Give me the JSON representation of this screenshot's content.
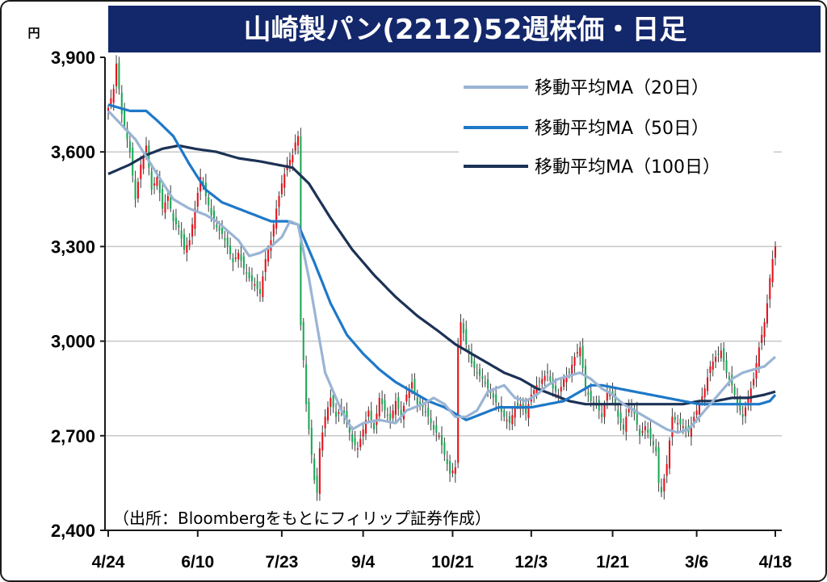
{
  "chart_data": {
    "type": "candlestick",
    "title": "山崎製パン(2212)52週株価・日足",
    "unit_label": "円",
    "source": "（出所：Bloombergをもとにフィリップ証券作成）",
    "y_ticks": [
      "3,900",
      "3,600",
      "3,300",
      "3,000",
      "2,700",
      "2,400"
    ],
    "y_tick_values": [
      3900,
      3600,
      3300,
      3000,
      2700,
      2400
    ],
    "ylim": [
      2400,
      3900
    ],
    "x_ticks": [
      "4/24",
      "6/10",
      "7/23",
      "9/4",
      "10/21",
      "12/3",
      "1/21",
      "3/6",
      "4/18"
    ],
    "x_tick_index": [
      0,
      33,
      64,
      94,
      127,
      156,
      186,
      217,
      246
    ],
    "n_days": 247,
    "grid": true,
    "legend_position": "top-right",
    "up_color": "#e8101a",
    "down_color": "#1aaa55",
    "series": [
      {
        "name": "移動平均MA（20日）",
        "color": "#9ab4d4"
      },
      {
        "name": "移動平均MA（50日）",
        "color": "#1e78c8"
      },
      {
        "name": "移動平均MA（100日）",
        "color": "#1c3256"
      }
    ],
    "close_anchors": [
      [
        0,
        3740
      ],
      [
        2,
        3800
      ],
      [
        3,
        3880
      ],
      [
        5,
        3720
      ],
      [
        8,
        3600
      ],
      [
        10,
        3450
      ],
      [
        12,
        3560
      ],
      [
        14,
        3620
      ],
      [
        16,
        3480
      ],
      [
        18,
        3520
      ],
      [
        20,
        3420
      ],
      [
        22,
        3460
      ],
      [
        24,
        3380
      ],
      [
        26,
        3360
      ],
      [
        28,
        3290
      ],
      [
        30,
        3320
      ],
      [
        32,
        3420
      ],
      [
        34,
        3520
      ],
      [
        36,
        3460
      ],
      [
        38,
        3400
      ],
      [
        40,
        3360
      ],
      [
        42,
        3340
      ],
      [
        44,
        3300
      ],
      [
        46,
        3250
      ],
      [
        48,
        3280
      ],
      [
        50,
        3230
      ],
      [
        52,
        3200
      ],
      [
        54,
        3180
      ],
      [
        56,
        3150
      ],
      [
        58,
        3260
      ],
      [
        60,
        3320
      ],
      [
        62,
        3420
      ],
      [
        64,
        3500
      ],
      [
        66,
        3560
      ],
      [
        68,
        3590
      ],
      [
        69,
        3630
      ],
      [
        70,
        3650
      ],
      [
        71,
        3050
      ],
      [
        72,
        2940
      ],
      [
        73,
        2800
      ],
      [
        75,
        2640
      ],
      [
        76,
        2560
      ],
      [
        77,
        2520
      ],
      [
        78,
        2660
      ],
      [
        80,
        2760
      ],
      [
        82,
        2820
      ],
      [
        84,
        2760
      ],
      [
        86,
        2790
      ],
      [
        88,
        2740
      ],
      [
        90,
        2680
      ],
      [
        92,
        2660
      ],
      [
        94,
        2720
      ],
      [
        96,
        2780
      ],
      [
        98,
        2720
      ],
      [
        100,
        2820
      ],
      [
        102,
        2780
      ],
      [
        104,
        2750
      ],
      [
        106,
        2810
      ],
      [
        108,
        2760
      ],
      [
        110,
        2830
      ],
      [
        112,
        2870
      ],
      [
        114,
        2800
      ],
      [
        116,
        2790
      ],
      [
        118,
        2760
      ],
      [
        120,
        2720
      ],
      [
        122,
        2700
      ],
      [
        124,
        2640
      ],
      [
        126,
        2580
      ],
      [
        128,
        2600
      ],
      [
        129,
        2990
      ],
      [
        130,
        3060
      ],
      [
        132,
        2990
      ],
      [
        134,
        2930
      ],
      [
        136,
        2900
      ],
      [
        138,
        2880
      ],
      [
        140,
        2850
      ],
      [
        142,
        2820
      ],
      [
        144,
        2790
      ],
      [
        146,
        2760
      ],
      [
        148,
        2740
      ],
      [
        150,
        2790
      ],
      [
        152,
        2800
      ],
      [
        154,
        2770
      ],
      [
        156,
        2830
      ],
      [
        158,
        2860
      ],
      [
        160,
        2880
      ],
      [
        162,
        2900
      ],
      [
        164,
        2850
      ],
      [
        166,
        2830
      ],
      [
        168,
        2880
      ],
      [
        170,
        2900
      ],
      [
        172,
        2950
      ],
      [
        174,
        2980
      ],
      [
        176,
        2850
      ],
      [
        178,
        2810
      ],
      [
        180,
        2800
      ],
      [
        182,
        2760
      ],
      [
        184,
        2840
      ],
      [
        186,
        2830
      ],
      [
        188,
        2760
      ],
      [
        190,
        2720
      ],
      [
        192,
        2800
      ],
      [
        194,
        2770
      ],
      [
        196,
        2700
      ],
      [
        198,
        2730
      ],
      [
        200,
        2690
      ],
      [
        202,
        2650
      ],
      [
        203,
        2550
      ],
      [
        204,
        2520
      ],
      [
        206,
        2610
      ],
      [
        208,
        2760
      ],
      [
        210,
        2740
      ],
      [
        212,
        2730
      ],
      [
        214,
        2710
      ],
      [
        216,
        2760
      ],
      [
        218,
        2800
      ],
      [
        220,
        2850
      ],
      [
        222,
        2920
      ],
      [
        224,
        2950
      ],
      [
        226,
        2970
      ],
      [
        228,
        2900
      ],
      [
        230,
        2860
      ],
      [
        232,
        2800
      ],
      [
        234,
        2760
      ],
      [
        236,
        2820
      ],
      [
        238,
        2880
      ],
      [
        240,
        2980
      ],
      [
        242,
        3060
      ],
      [
        243,
        3120
      ],
      [
        244,
        3200
      ],
      [
        245,
        3260
      ],
      [
        246,
        3300
      ]
    ],
    "ma20_anchors": [
      [
        0,
        3730
      ],
      [
        10,
        3640
      ],
      [
        18,
        3530
      ],
      [
        24,
        3450
      ],
      [
        30,
        3420
      ],
      [
        36,
        3400
      ],
      [
        40,
        3380
      ],
      [
        44,
        3350
      ],
      [
        48,
        3320
      ],
      [
        52,
        3270
      ],
      [
        56,
        3280
      ],
      [
        60,
        3300
      ],
      [
        64,
        3330
      ],
      [
        67,
        3380
      ],
      [
        70,
        3370
      ],
      [
        74,
        3200
      ],
      [
        80,
        2900
      ],
      [
        86,
        2780
      ],
      [
        90,
        2720
      ],
      [
        94,
        2740
      ],
      [
        100,
        2750
      ],
      [
        106,
        2740
      ],
      [
        110,
        2780
      ],
      [
        116,
        2800
      ],
      [
        120,
        2820
      ],
      [
        124,
        2800
      ],
      [
        128,
        2760
      ],
      [
        132,
        2760
      ],
      [
        136,
        2780
      ],
      [
        140,
        2840
      ],
      [
        146,
        2860
      ],
      [
        150,
        2820
      ],
      [
        154,
        2810
      ],
      [
        158,
        2830
      ],
      [
        162,
        2860
      ],
      [
        166,
        2880
      ],
      [
        170,
        2890
      ],
      [
        174,
        2900
      ],
      [
        178,
        2880
      ],
      [
        182,
        2850
      ],
      [
        186,
        2830
      ],
      [
        190,
        2800
      ],
      [
        194,
        2780
      ],
      [
        198,
        2760
      ],
      [
        202,
        2740
      ],
      [
        206,
        2720
      ],
      [
        210,
        2710
      ],
      [
        214,
        2720
      ],
      [
        218,
        2760
      ],
      [
        222,
        2800
      ],
      [
        226,
        2840
      ],
      [
        230,
        2880
      ],
      [
        234,
        2900
      ],
      [
        238,
        2910
      ],
      [
        242,
        2920
      ],
      [
        246,
        2950
      ]
    ],
    "ma50_anchors": [
      [
        0,
        3750
      ],
      [
        8,
        3730
      ],
      [
        14,
        3730
      ],
      [
        18,
        3700
      ],
      [
        24,
        3650
      ],
      [
        30,
        3560
      ],
      [
        36,
        3480
      ],
      [
        42,
        3440
      ],
      [
        48,
        3420
      ],
      [
        54,
        3400
      ],
      [
        60,
        3380
      ],
      [
        66,
        3380
      ],
      [
        70,
        3370
      ],
      [
        76,
        3250
      ],
      [
        82,
        3120
      ],
      [
        88,
        3020
      ],
      [
        94,
        2960
      ],
      [
        100,
        2910
      ],
      [
        106,
        2870
      ],
      [
        112,
        2840
      ],
      [
        118,
        2810
      ],
      [
        124,
        2790
      ],
      [
        128,
        2770
      ],
      [
        132,
        2750
      ],
      [
        138,
        2770
      ],
      [
        144,
        2790
      ],
      [
        150,
        2790
      ],
      [
        156,
        2790
      ],
      [
        162,
        2800
      ],
      [
        168,
        2810
      ],
      [
        174,
        2840
      ],
      [
        178,
        2860
      ],
      [
        182,
        2860
      ],
      [
        188,
        2850
      ],
      [
        194,
        2840
      ],
      [
        200,
        2830
      ],
      [
        206,
        2820
      ],
      [
        212,
        2810
      ],
      [
        218,
        2800
      ],
      [
        224,
        2800
      ],
      [
        230,
        2800
      ],
      [
        236,
        2800
      ],
      [
        240,
        2800
      ],
      [
        244,
        2810
      ],
      [
        246,
        2830
      ]
    ],
    "ma100_anchors": [
      [
        0,
        3530
      ],
      [
        8,
        3560
      ],
      [
        14,
        3590
      ],
      [
        20,
        3610
      ],
      [
        26,
        3620
      ],
      [
        32,
        3610
      ],
      [
        40,
        3600
      ],
      [
        48,
        3580
      ],
      [
        56,
        3570
      ],
      [
        62,
        3560
      ],
      [
        68,
        3550
      ],
      [
        74,
        3500
      ],
      [
        82,
        3390
      ],
      [
        90,
        3290
      ],
      [
        98,
        3210
      ],
      [
        106,
        3140
      ],
      [
        114,
        3080
      ],
      [
        122,
        3030
      ],
      [
        128,
        2990
      ],
      [
        134,
        2960
      ],
      [
        140,
        2930
      ],
      [
        146,
        2900
      ],
      [
        152,
        2880
      ],
      [
        158,
        2850
      ],
      [
        164,
        2830
      ],
      [
        170,
        2810
      ],
      [
        176,
        2800
      ],
      [
        182,
        2800
      ],
      [
        188,
        2800
      ],
      [
        194,
        2800
      ],
      [
        200,
        2800
      ],
      [
        206,
        2800
      ],
      [
        212,
        2800
      ],
      [
        218,
        2810
      ],
      [
        224,
        2810
      ],
      [
        230,
        2820
      ],
      [
        236,
        2820
      ],
      [
        242,
        2830
      ],
      [
        246,
        2840
      ]
    ]
  }
}
